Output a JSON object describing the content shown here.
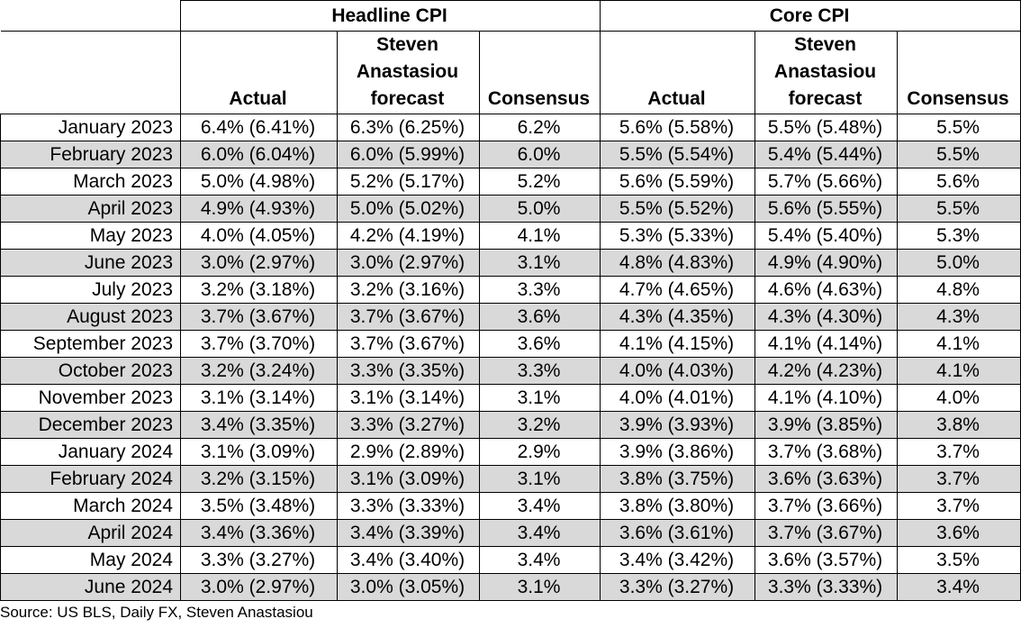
{
  "header": {
    "groups": [
      "Headline CPI",
      "Core CPI"
    ],
    "columns": [
      "Actual",
      "Steven Anastasiou forecast",
      "Consensus",
      "Actual",
      "Steven Anastasiou forecast",
      "Consensus"
    ]
  },
  "rows": [
    {
      "month": "January 2023",
      "h_actual": "6.4% (6.41%)",
      "h_forecast": "6.3% (6.25%)",
      "h_consensus": "6.2%",
      "c_actual": "5.6% (5.58%)",
      "c_forecast": "5.5% (5.48%)",
      "c_consensus": "5.5%"
    },
    {
      "month": "February 2023",
      "h_actual": "6.0% (6.04%)",
      "h_forecast": "6.0% (5.99%)",
      "h_consensus": "6.0%",
      "c_actual": "5.5% (5.54%)",
      "c_forecast": "5.4% (5.44%)",
      "c_consensus": "5.5%"
    },
    {
      "month": "March 2023",
      "h_actual": "5.0% (4.98%)",
      "h_forecast": "5.2% (5.17%)",
      "h_consensus": "5.2%",
      "c_actual": "5.6% (5.59%)",
      "c_forecast": "5.7% (5.66%)",
      "c_consensus": "5.6%"
    },
    {
      "month": "April 2023",
      "h_actual": "4.9% (4.93%)",
      "h_forecast": "5.0% (5.02%)",
      "h_consensus": "5.0%",
      "c_actual": "5.5% (5.52%)",
      "c_forecast": "5.6% (5.55%)",
      "c_consensus": "5.5%"
    },
    {
      "month": "May 2023",
      "h_actual": "4.0% (4.05%)",
      "h_forecast": "4.2% (4.19%)",
      "h_consensus": "4.1%",
      "c_actual": "5.3% (5.33%)",
      "c_forecast": "5.4% (5.40%)",
      "c_consensus": "5.3%"
    },
    {
      "month": "June 2023",
      "h_actual": "3.0% (2.97%)",
      "h_forecast": "3.0% (2.97%)",
      "h_consensus": "3.1%",
      "c_actual": "4.8% (4.83%)",
      "c_forecast": "4.9% (4.90%)",
      "c_consensus": "5.0%"
    },
    {
      "month": "July 2023",
      "h_actual": "3.2% (3.18%)",
      "h_forecast": "3.2% (3.16%)",
      "h_consensus": "3.3%",
      "c_actual": "4.7% (4.65%)",
      "c_forecast": "4.6% (4.63%)",
      "c_consensus": "4.8%"
    },
    {
      "month": "August 2023",
      "h_actual": "3.7% (3.67%)",
      "h_forecast": "3.7% (3.67%)",
      "h_consensus": "3.6%",
      "c_actual": "4.3% (4.35%)",
      "c_forecast": "4.3% (4.30%)",
      "c_consensus": "4.3%"
    },
    {
      "month": "September 2023",
      "h_actual": "3.7% (3.70%)",
      "h_forecast": "3.7% (3.67%)",
      "h_consensus": "3.6%",
      "c_actual": "4.1% (4.15%)",
      "c_forecast": "4.1% (4.14%)",
      "c_consensus": "4.1%"
    },
    {
      "month": "October 2023",
      "h_actual": "3.2% (3.24%)",
      "h_forecast": "3.3% (3.35%)",
      "h_consensus": "3.3%",
      "c_actual": "4.0% (4.03%)",
      "c_forecast": "4.2% (4.23%)",
      "c_consensus": "4.1%"
    },
    {
      "month": "November 2023",
      "h_actual": "3.1% (3.14%)",
      "h_forecast": "3.1% (3.14%)",
      "h_consensus": "3.1%",
      "c_actual": "4.0% (4.01%)",
      "c_forecast": "4.1% (4.10%)",
      "c_consensus": "4.0%"
    },
    {
      "month": "December 2023",
      "h_actual": "3.4% (3.35%)",
      "h_forecast": "3.3% (3.27%)",
      "h_consensus": "3.2%",
      "c_actual": "3.9% (3.93%)",
      "c_forecast": "3.9% (3.85%)",
      "c_consensus": "3.8%"
    },
    {
      "month": "January 2024",
      "h_actual": "3.1% (3.09%)",
      "h_forecast": "2.9% (2.89%)",
      "h_consensus": "2.9%",
      "c_actual": "3.9% (3.86%)",
      "c_forecast": "3.7% (3.68%)",
      "c_consensus": "3.7%"
    },
    {
      "month": "February 2024",
      "h_actual": "3.2% (3.15%)",
      "h_forecast": "3.1% (3.09%)",
      "h_consensus": "3.1%",
      "c_actual": "3.8% (3.75%)",
      "c_forecast": "3.6% (3.63%)",
      "c_consensus": "3.7%"
    },
    {
      "month": "March 2024",
      "h_actual": "3.5% (3.48%)",
      "h_forecast": "3.3% (3.33%)",
      "h_consensus": "3.4%",
      "c_actual": "3.8% (3.80%)",
      "c_forecast": "3.7% (3.66%)",
      "c_consensus": "3.7%"
    },
    {
      "month": "April 2024",
      "h_actual": "3.4% (3.36%)",
      "h_forecast": "3.4% (3.39%)",
      "h_consensus": "3.4%",
      "c_actual": "3.6% (3.61%)",
      "c_forecast": "3.7% (3.67%)",
      "c_consensus": "3.6%"
    },
    {
      "month": "May 2024",
      "h_actual": "3.3% (3.27%)",
      "h_forecast": "3.4% (3.40%)",
      "h_consensus": "3.4%",
      "c_actual": "3.4% (3.42%)",
      "c_forecast": "3.6% (3.57%)",
      "c_consensus": "3.5%"
    },
    {
      "month": "June 2024",
      "h_actual": "3.0% (2.97%)",
      "h_forecast": "3.0% (3.05%)",
      "h_consensus": "3.1%",
      "c_actual": "3.3% (3.27%)",
      "c_forecast": "3.3% (3.33%)",
      "c_consensus": "3.4%"
    }
  ],
  "source": "Source: US BLS, Daily FX, Steven Anastasiou",
  "colors": {
    "shade": "#d9d9d9",
    "border": "#000000"
  }
}
